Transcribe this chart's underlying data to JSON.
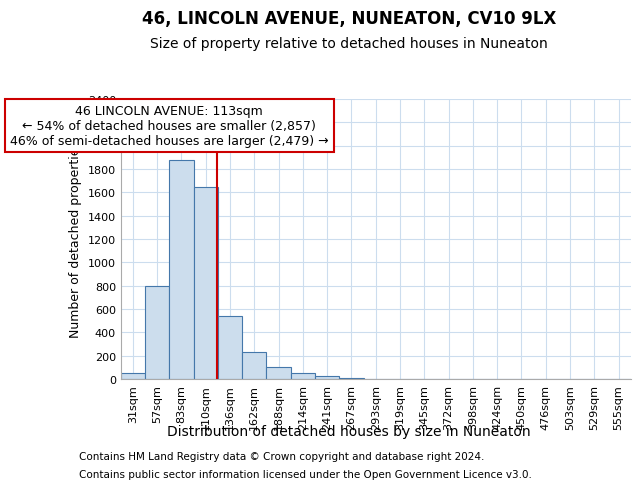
{
  "title1": "46, LINCOLN AVENUE, NUNEATON, CV10 9LX",
  "title2": "Size of property relative to detached houses in Nuneaton",
  "xlabel": "Distribution of detached houses by size in Nuneaton",
  "ylabel": "Number of detached properties",
  "categories": [
    "31sqm",
    "57sqm",
    "83sqm",
    "110sqm",
    "136sqm",
    "162sqm",
    "188sqm",
    "214sqm",
    "241sqm",
    "267sqm",
    "293sqm",
    "319sqm",
    "345sqm",
    "372sqm",
    "398sqm",
    "424sqm",
    "450sqm",
    "476sqm",
    "503sqm",
    "529sqm",
    "555sqm"
  ],
  "values": [
    55,
    800,
    1880,
    1650,
    540,
    235,
    105,
    50,
    30,
    5,
    3,
    2,
    0,
    0,
    0,
    0,
    0,
    0,
    0,
    0,
    0
  ],
  "bar_color": "#ccdded",
  "bar_edge_color": "#4477aa",
  "red_line_x": 3.45,
  "annotation_title": "46 LINCOLN AVENUE: 113sqm",
  "annotation_line1": "← 54% of detached houses are smaller (2,857)",
  "annotation_line2": "46% of semi-detached houses are larger (2,479) →",
  "annotation_box_facecolor": "#ffffff",
  "annotation_box_edgecolor": "#cc0000",
  "ylim_max": 2400,
  "yticks": [
    0,
    200,
    400,
    600,
    800,
    1000,
    1200,
    1400,
    1600,
    1800,
    2000,
    2200,
    2400
  ],
  "footnote1": "Contains HM Land Registry data © Crown copyright and database right 2024.",
  "footnote2": "Contains public sector information licensed under the Open Government Licence v3.0.",
  "bg_color": "#ffffff",
  "grid_color": "#ccddee",
  "title1_fontsize": 12,
  "title2_fontsize": 10,
  "xlabel_fontsize": 10,
  "ylabel_fontsize": 9,
  "tick_fontsize": 8,
  "annot_fontsize": 9,
  "footnote_fontsize": 7.5
}
